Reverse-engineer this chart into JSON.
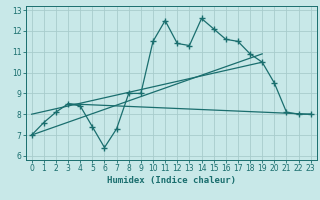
{
  "xlabel": "Humidex (Indice chaleur)",
  "bg_color": "#c8e8e8",
  "grid_color": "#a8cccc",
  "line_color": "#1a6e6e",
  "xlim": [
    -0.5,
    23.5
  ],
  "ylim": [
    5.8,
    13.2
  ],
  "yticks": [
    6,
    7,
    8,
    9,
    10,
    11,
    12,
    13
  ],
  "xticks": [
    0,
    1,
    2,
    3,
    4,
    5,
    6,
    7,
    8,
    9,
    10,
    11,
    12,
    13,
    14,
    15,
    16,
    17,
    18,
    19,
    20,
    21,
    22,
    23
  ],
  "series1_x": [
    0,
    1,
    2,
    3,
    4,
    5,
    6,
    7,
    8,
    9,
    10,
    11,
    12,
    13,
    14,
    15,
    16,
    17,
    18,
    19,
    20,
    21,
    22,
    23
  ],
  "series1_y": [
    7.0,
    7.6,
    8.1,
    8.5,
    8.4,
    7.4,
    6.4,
    7.3,
    9.0,
    9.0,
    11.5,
    12.5,
    11.4,
    11.3,
    12.6,
    12.1,
    11.6,
    11.5,
    10.9,
    10.5,
    9.5,
    8.1,
    8.0,
    8.0
  ],
  "line2_x": [
    0,
    19
  ],
  "line2_y": [
    8.0,
    10.5
  ],
  "line3_x": [
    0,
    19
  ],
  "line3_y": [
    7.0,
    10.9
  ],
  "line4_x": [
    3,
    23
  ],
  "line4_y": [
    8.5,
    8.0
  ],
  "tick_fontsize": 5.5,
  "label_fontsize": 6.5
}
